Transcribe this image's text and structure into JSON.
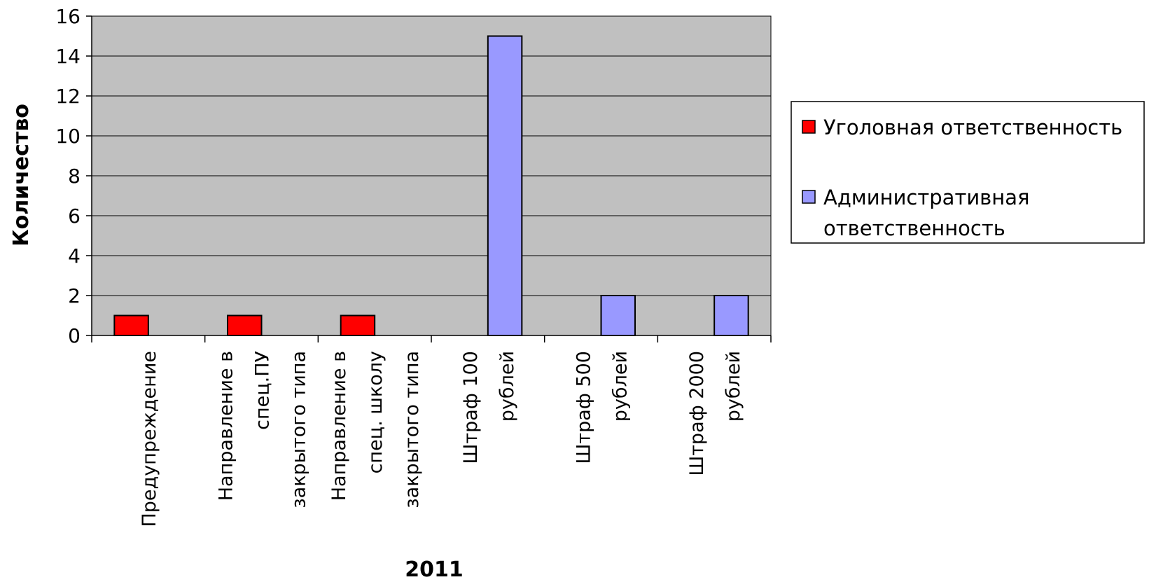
{
  "chart_data": {
    "type": "bar",
    "title": "",
    "xlabel": "2011",
    "ylabel": "Количество",
    "ylim": [
      0,
      16
    ],
    "yticks": [
      0,
      2,
      4,
      6,
      8,
      10,
      12,
      14,
      16
    ],
    "grid": true,
    "legend_position": "right",
    "categories": [
      [
        "Предупреждение"
      ],
      [
        "Направление в",
        "спец.ПУ",
        "закрытого типа"
      ],
      [
        "Направление в",
        "спец. школу",
        "закрытого типа"
      ],
      [
        "Штраф 100",
        "рублей"
      ],
      [
        "Штраф 500",
        "рублей"
      ],
      [
        "Штраф 2000",
        "рублей"
      ]
    ],
    "series": [
      {
        "name": "Уголовная ответственность",
        "color": "#ff0000",
        "values": [
          1,
          1,
          1,
          0,
          0,
          0
        ]
      },
      {
        "name": "Административная ответственность",
        "color": "#9999ff",
        "values": [
          0,
          0,
          0,
          15,
          2,
          2
        ]
      }
    ],
    "plot_background": "#c0c0c0"
  }
}
